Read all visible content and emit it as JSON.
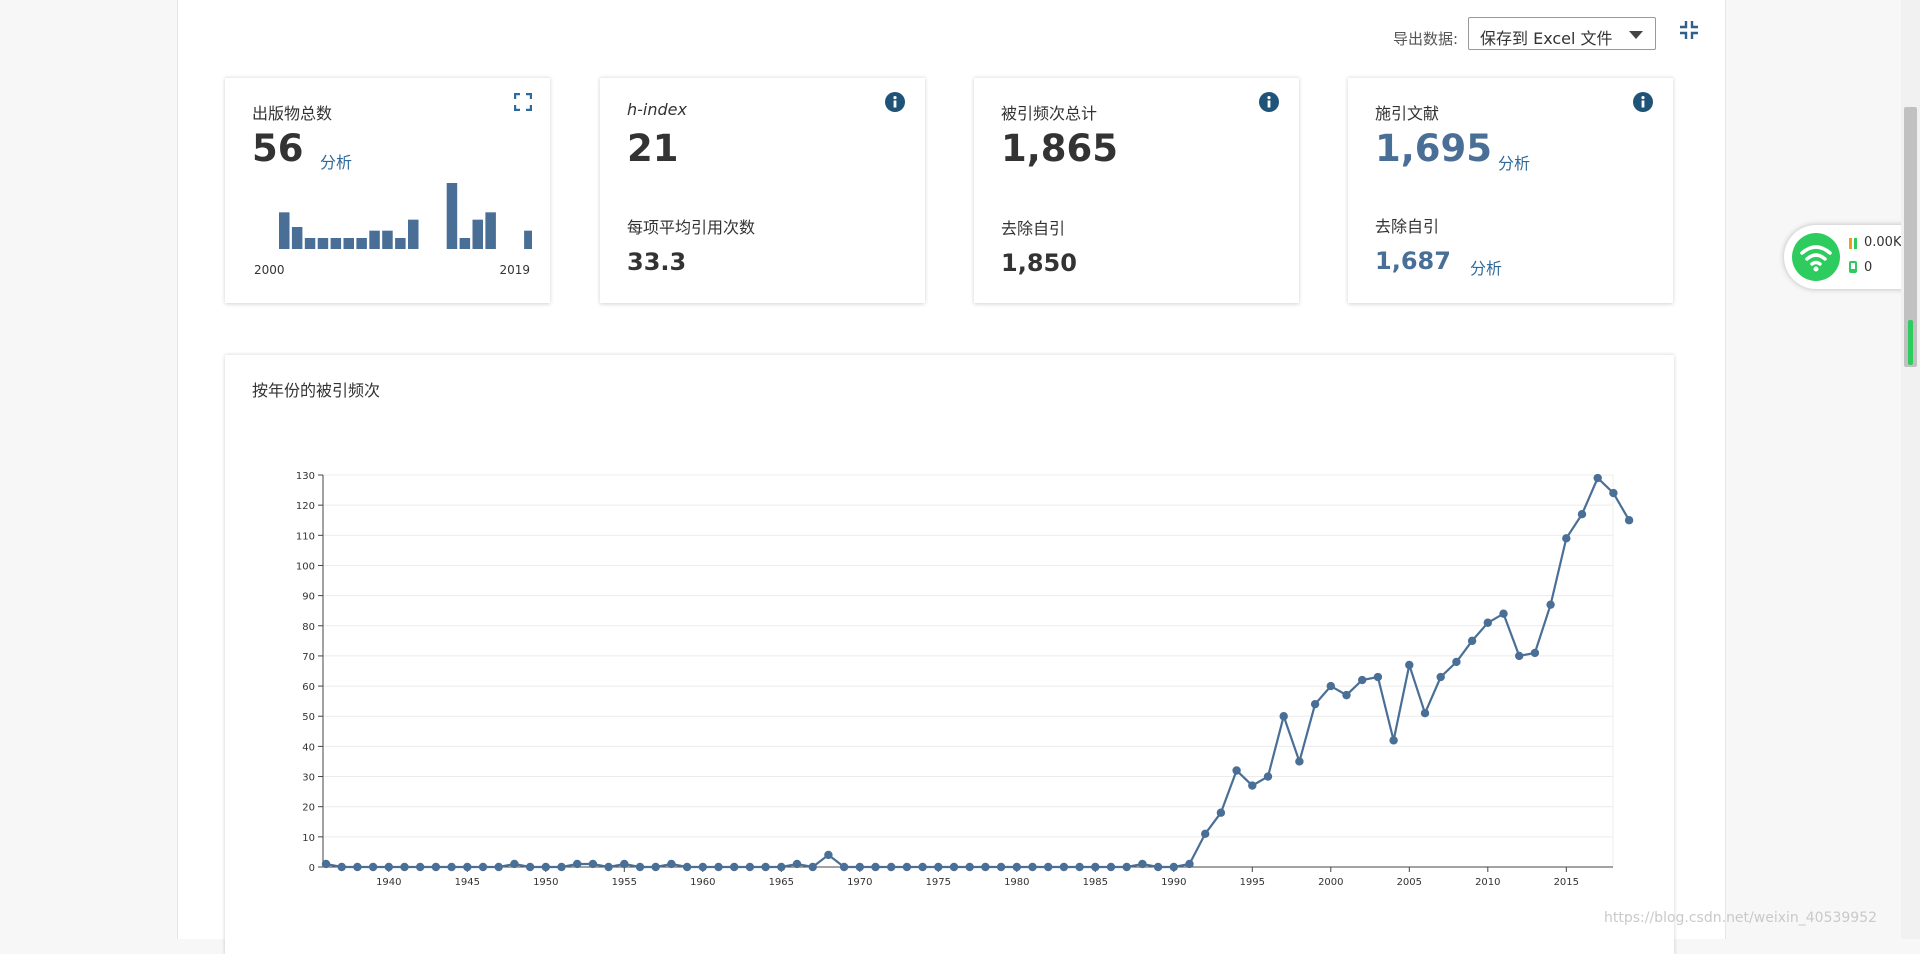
{
  "export": {
    "label": "导出数据:",
    "selected": "保存到 Excel 文件"
  },
  "cards": {
    "publications": {
      "title": "出版物总数",
      "value": "56",
      "analyze": "分析",
      "year_start": "2000",
      "year_end": "2019"
    },
    "hindex": {
      "title": "h-index",
      "value": "21",
      "avg_label": "每项平均引用次数",
      "avg_value": "33.3"
    },
    "times_cited": {
      "title": "被引频次总计",
      "value": "1,865",
      "without_self_label": "去除自引",
      "without_self_value": "1,850"
    },
    "citing": {
      "title": "施引文献",
      "value": "1,695",
      "analyze": "分析",
      "without_self_label": "去除自引",
      "without_self_value": "1,687",
      "analyze2": "分析"
    }
  },
  "publications_per_year": {
    "years": [
      2000,
      2001,
      2002,
      2003,
      2004,
      2005,
      2006,
      2007,
      2008,
      2009,
      2010,
      2011,
      2012,
      2013,
      2014,
      2015,
      2016,
      2017,
      2018,
      2019
    ],
    "values": [
      5,
      3,
      1.5,
      1.5,
      1.5,
      1.5,
      1.5,
      2.5,
      2.5,
      1.5,
      4,
      0,
      0,
      9,
      1.5,
      4,
      5,
      0,
      0,
      2.5
    ]
  },
  "chart_data": {
    "type": "line",
    "title": "按年份的被引频次",
    "x_start": 1936,
    "x_ticks": [
      1940,
      1945,
      1950,
      1955,
      1960,
      1965,
      1970,
      1975,
      1980,
      1985,
      1990,
      1995,
      2000,
      2005,
      2010,
      2015
    ],
    "ylim": [
      0,
      130
    ],
    "y_ticks": [
      0,
      10,
      20,
      30,
      40,
      50,
      60,
      70,
      80,
      90,
      100,
      110,
      120,
      130
    ],
    "values": [
      1,
      0,
      0,
      0,
      0,
      0,
      0,
      0,
      0,
      0,
      0,
      0,
      1,
      0,
      0,
      0,
      1,
      1,
      0,
      1,
      0,
      0,
      1,
      0,
      0,
      0,
      0,
      0,
      0,
      0,
      1,
      0,
      4,
      0,
      0,
      0,
      0,
      0,
      0,
      0,
      0,
      0,
      0,
      0,
      0,
      0,
      0,
      0,
      0,
      0,
      0,
      0,
      1,
      0,
      0,
      1,
      11,
      18,
      32,
      27,
      30,
      50,
      35,
      54,
      60,
      57,
      62,
      63,
      42,
      67,
      51,
      63,
      68,
      75,
      81,
      84,
      70,
      71,
      87,
      109,
      117,
      129,
      124,
      115
    ]
  },
  "net_widget": {
    "speed": "0.00K/s",
    "count": "0"
  },
  "watermark": "https://blog.csdn.net/weixin_40539952"
}
